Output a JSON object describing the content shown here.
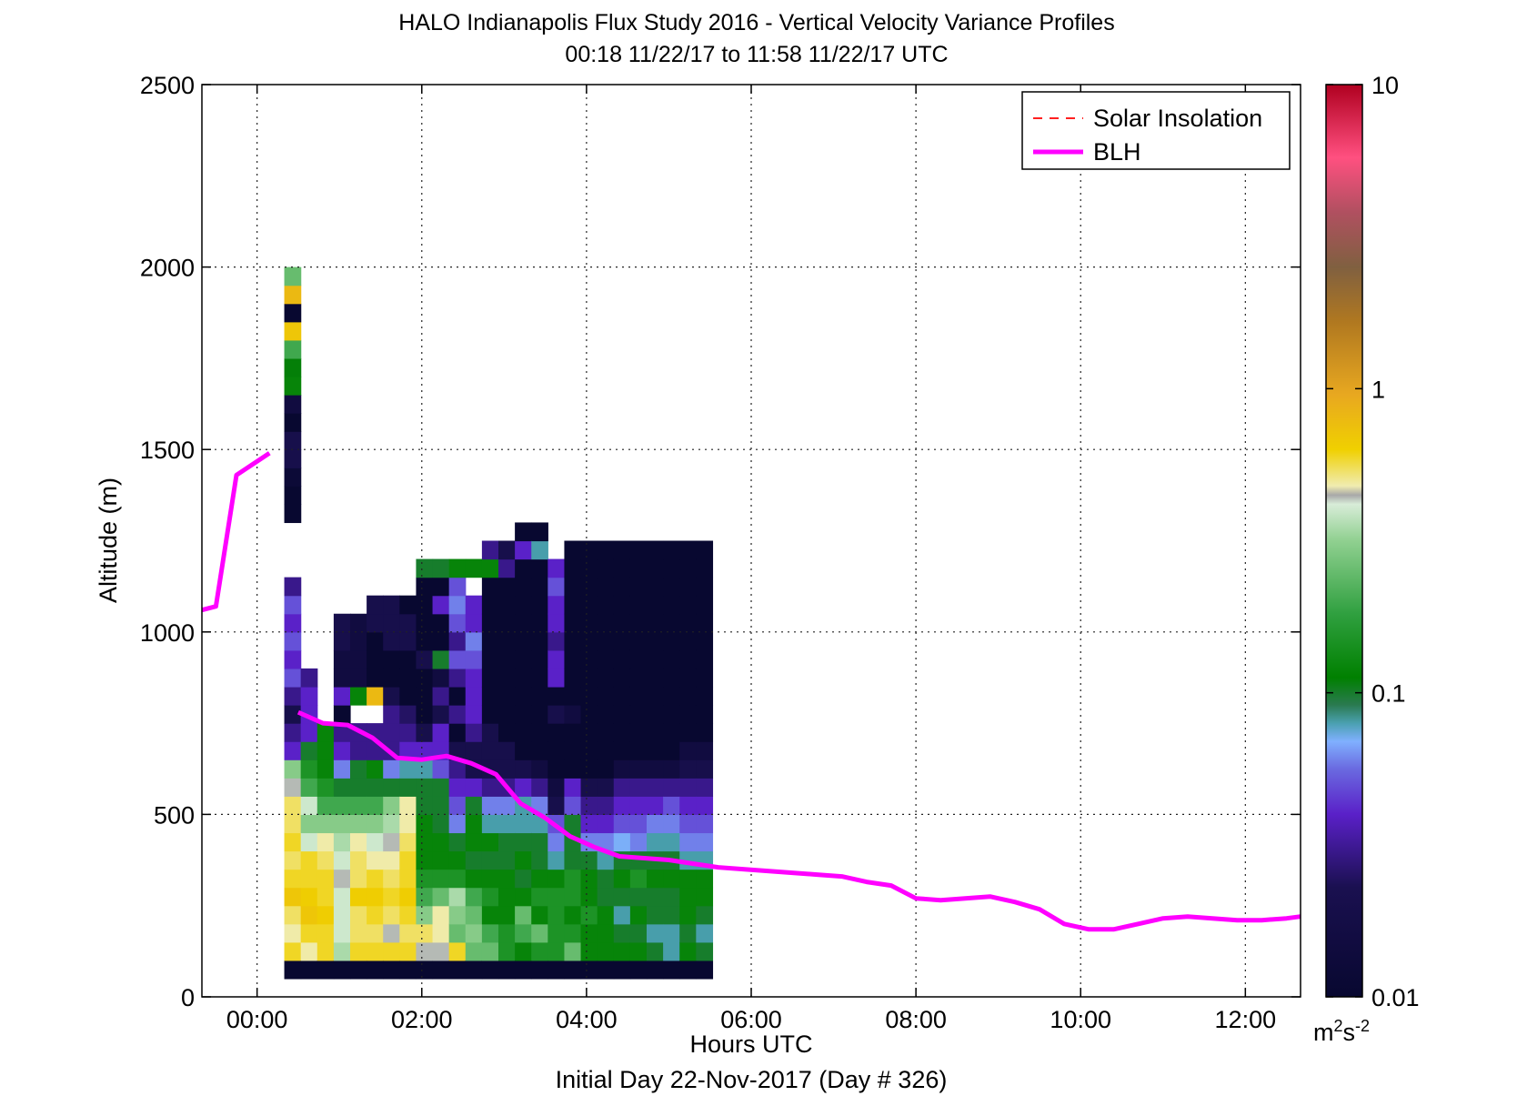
{
  "chart_data": {
    "type": "heatmap",
    "title": "HALO Indianapolis Flux Study 2016 - Vertical Velocity Variance Profiles",
    "subtitle": "00:18 11/22/17 to 11:58 11/22/17  UTC",
    "xlabel": "Hours UTC",
    "xlabel2": "Initial Day 22-Nov-2017 (Day # 326)",
    "ylabel": "Altitude (m)",
    "xlim": [
      -0.67,
      12.67
    ],
    "ylim": [
      0,
      2500
    ],
    "x_ticks": [
      {
        "value": 0,
        "label": "00:00"
      },
      {
        "value": 2,
        "label": "02:00"
      },
      {
        "value": 4,
        "label": "04:00"
      },
      {
        "value": 6,
        "label": "06:00"
      },
      {
        "value": 8,
        "label": "08:00"
      },
      {
        "value": 10,
        "label": "10:00"
      },
      {
        "value": 12,
        "label": "12:00"
      }
    ],
    "y_ticks": [
      {
        "value": 0,
        "label": "0"
      },
      {
        "value": 500,
        "label": "500"
      },
      {
        "value": 1000,
        "label": "1000"
      },
      {
        "value": 1500,
        "label": "1500"
      },
      {
        "value": 2000,
        "label": "2000"
      },
      {
        "value": 2500,
        "label": "2500"
      }
    ],
    "grid": true,
    "legend": {
      "placement": "top-right",
      "entries": [
        {
          "label": "Solar Insolation",
          "color": "#ff0000",
          "style": "dashed"
        },
        {
          "label": "BLH",
          "color": "#ff00ff",
          "style": "solid"
        }
      ]
    },
    "colorbar": {
      "scale": "log",
      "range": [
        0.01,
        10
      ],
      "ticks": [
        {
          "value": 0.01,
          "label": "0.01"
        },
        {
          "value": 0.1,
          "label": "0.1"
        },
        {
          "value": 1,
          "label": "1"
        },
        {
          "value": 10,
          "label": "10"
        }
      ],
      "unit_base": "m",
      "unit_sup1": "2",
      "unit_mid": "s",
      "unit_sup2": "-2"
    },
    "heatmap": {
      "x_start": 0.33,
      "x_step": 0.2,
      "y_start": 50,
      "y_step": 50,
      "columns": [
        {
          "v": [
            0.01,
            0.6,
            0.5,
            0.55,
            0.7,
            0.6,
            0.55,
            0.6,
            0.55,
            0.55,
            0.45,
            0.3,
            0.04,
            0.03,
            0.02,
            0.03,
            0.05,
            0.04,
            0.05,
            0.04,
            0.05,
            0.03,
            0,
            0,
            0,
            0.01,
            0.01,
            0.012,
            0.02,
            0.02,
            0.01,
            0.015,
            0.12,
            0.11,
            0.2,
            0.7,
            0.01,
            0.8,
            0.25
          ]
        },
        {
          "v": [
            0.01,
            0.5,
            0.6,
            0.7,
            0.65,
            0.6,
            0.6,
            0.4,
            0.3,
            0.4,
            0.2,
            0.15,
            0.1,
            0.04,
            0.04,
            0.04,
            0.03
          ]
        },
        {
          "v": [
            0.01,
            0.6,
            0.6,
            0.65,
            0.6,
            0.6,
            0.55,
            0.5,
            0.3,
            0.2,
            0.15,
            0.12,
            0.12,
            0.12,
            0,
            0,
            0
          ]
        },
        {
          "v": [
            0.01,
            0.35,
            0.4,
            0.4,
            0.4,
            0.45,
            0.4,
            0.35,
            0.3,
            0.2,
            0.1,
            0.06,
            0.04,
            0.03,
            0.01,
            0.04,
            0.015,
            0.015,
            0.02,
            0.02
          ]
        },
        {
          "v": [
            0.01,
            0.6,
            0.55,
            0.55,
            0.65,
            0.55,
            0.55,
            0.5,
            0.3,
            0.2,
            0.1,
            0.1,
            0.03,
            0.03,
            0,
            0.12,
            0.015,
            0.015,
            0.015,
            0.015
          ]
        },
        {
          "v": [
            0.01,
            0.6,
            0.55,
            0.6,
            0.65,
            0.6,
            0.5,
            0.4,
            0.3,
            0.2,
            0.1,
            0.12,
            0.03,
            0.03,
            0,
            0.8,
            0.01,
            0.01,
            0.01,
            0.02,
            0.02
          ]
        },
        {
          "v": [
            0.01,
            0.6,
            0.45,
            0.55,
            0.6,
            0.55,
            0.5,
            0.45,
            0.35,
            0.3,
            0.1,
            0.06,
            0.03,
            0.03,
            0.03,
            0.02,
            0.01,
            0.01,
            0.02,
            0.02,
            0.02
          ]
        },
        {
          "v": [
            0.01,
            0.6,
            0.55,
            0.6,
            0.65,
            0.6,
            0.6,
            0.55,
            0.5,
            0.5,
            0.1,
            0.08,
            0.04,
            0.03,
            0.025,
            0.01,
            0.01,
            0.01,
            0.02,
            0.02,
            0.01
          ]
        },
        {
          "v": [
            0.01,
            0.45,
            0.55,
            0.3,
            0.2,
            0.15,
            0.12,
            0.12,
            0.12,
            0.1,
            0.1,
            0.08,
            0.04,
            0.02,
            0.01,
            0.01,
            0.01,
            0.02,
            0.01,
            0.01,
            0.01,
            0.01,
            0.1
          ]
        },
        {
          "v": [
            0.01,
            0.45,
            0.5,
            0.5,
            0.25,
            0.15,
            0.12,
            0.12,
            0.1,
            0.1,
            0.1,
            0.05,
            0.04,
            0.04,
            0.02,
            0.03,
            0.015,
            0.1,
            0.01,
            0.01,
            0.04,
            0.01,
            0.1
          ]
        },
        {
          "v": [
            0.01,
            0.6,
            0.25,
            0.3,
            0.35,
            0.15,
            0.12,
            0.1,
            0.06,
            0.05,
            0.04,
            0.03,
            0.02,
            0.01,
            0.03,
            0.01,
            0.03,
            0.05,
            0.03,
            0.05,
            0.06,
            0.05,
            0.12
          ]
        },
        {
          "v": [
            0.01,
            0.25,
            0.3,
            0.25,
            0.2,
            0.12,
            0.1,
            0.12,
            0.12,
            0.1,
            0.04,
            0.02,
            0.02,
            0.03,
            0.04,
            0.04,
            0.04,
            0.05,
            0.06,
            0.04,
            0.04,
            0,
            0.12
          ]
        },
        {
          "v": [
            0.01,
            0.25,
            0.2,
            0.12,
            0.15,
            0.12,
            0.1,
            0.12,
            0.08,
            0.06,
            0.03,
            0.02,
            0.02,
            0.02,
            0.01,
            0.01,
            0.01,
            0.01,
            0.01,
            0.01,
            0.01,
            0.01,
            0.12,
            0.03
          ]
        },
        {
          "v": [
            0.01,
            0.15,
            0.15,
            0.12,
            0.12,
            0.12,
            0.1,
            0.1,
            0.08,
            0.06,
            0.03,
            0.02,
            0.02,
            0.01,
            0.01,
            0.01,
            0.01,
            0.01,
            0.01,
            0.01,
            0.01,
            0.01,
            0.03,
            0.02
          ]
        },
        {
          "v": [
            0.01,
            0.12,
            0.2,
            0.25,
            0.12,
            0.1,
            0.12,
            0.1,
            0.08,
            0.08,
            0.04,
            0.02,
            0.01,
            0.01,
            0.01,
            0.01,
            0.01,
            0.01,
            0.01,
            0.01,
            0.01,
            0.01,
            0.01,
            0.04,
            0.01
          ]
        },
        {
          "v": [
            0.01,
            0.15,
            0.25,
            0.12,
            0.15,
            0.12,
            0.1,
            0.1,
            0.08,
            0.06,
            0.03,
            0.015,
            0.01,
            0.01,
            0.01,
            0.01,
            0.01,
            0.01,
            0.01,
            0.01,
            0.01,
            0.01,
            0.01,
            0.08,
            0.01
          ]
        },
        {
          "v": [
            0.01,
            0.15,
            0.15,
            0.15,
            0.15,
            0.12,
            0.08,
            0.06,
            0.05,
            0.02,
            0.015,
            0.01,
            0.01,
            0.01,
            0.02,
            0.01,
            0.04,
            0.04,
            0.03,
            0.04,
            0.04,
            0.05,
            0.04
          ]
        },
        {
          "v": [
            0.01,
            0.25,
            0.15,
            0.12,
            0.15,
            0.15,
            0.1,
            0.1,
            0.1,
            0.05,
            0.04,
            0.01,
            0.01,
            0.01,
            0.015,
            0.01,
            0.01,
            0.01,
            0.01,
            0.01,
            0.01,
            0.01,
            0.01,
            0.01
          ]
        },
        {
          "v": [
            0.01,
            0.12,
            0.12,
            0.15,
            0.12,
            0.12,
            0.1,
            0.06,
            0.04,
            0.03,
            0.02,
            0.01,
            0.01,
            0.01,
            0.01,
            0.01,
            0.01,
            0.01,
            0.01,
            0.01,
            0.01,
            0.01,
            0.01,
            0.01
          ]
        },
        {
          "v": [
            0.01,
            0.12,
            0.12,
            0.12,
            0.1,
            0.1,
            0.08,
            0.06,
            0.04,
            0.03,
            0.02,
            0.01,
            0.01,
            0.01,
            0.01,
            0.01,
            0.01,
            0.01,
            0.01,
            0.01,
            0.01,
            0.01,
            0.01,
            0.01
          ]
        },
        {
          "v": [
            0.01,
            0.12,
            0.1,
            0.08,
            0.1,
            0.12,
            0.1,
            0.07,
            0.05,
            0.04,
            0.03,
            0.015,
            0.01,
            0.01,
            0.01,
            0.01,
            0.01,
            0.01,
            0.01,
            0.01,
            0.01,
            0.01,
            0.01,
            0.01
          ]
        },
        {
          "v": [
            0.01,
            0.12,
            0.1,
            0.12,
            0.1,
            0.15,
            0.1,
            0.06,
            0.05,
            0.04,
            0.03,
            0.015,
            0.01,
            0.01,
            0.01,
            0.01,
            0.01,
            0.01,
            0.01,
            0.01,
            0.01,
            0.01,
            0.01,
            0.01
          ]
        },
        {
          "v": [
            0.01,
            0.1,
            0.08,
            0.1,
            0.1,
            0.12,
            0.1,
            0.08,
            0.06,
            0.04,
            0.03,
            0.015,
            0.01,
            0.01,
            0.01,
            0.01,
            0.01,
            0.01,
            0.01,
            0.01,
            0.01,
            0.01,
            0.01,
            0.01
          ]
        },
        {
          "v": [
            0.01,
            0.08,
            0.08,
            0.1,
            0.1,
            0.12,
            0.1,
            0.08,
            0.06,
            0.05,
            0.03,
            0.015,
            0.01,
            0.01,
            0.01,
            0.01,
            0.01,
            0.01,
            0.01,
            0.01,
            0.01,
            0.01,
            0.01,
            0.01
          ]
        },
        {
          "v": [
            0.01,
            0.12,
            0.1,
            0.12,
            0.12,
            0.12,
            0.08,
            0.06,
            0.05,
            0.04,
            0.03,
            0.02,
            0.015,
            0.01,
            0.01,
            0.01,
            0.01,
            0.01,
            0.01,
            0.01,
            0.01,
            0.01,
            0.01,
            0.01
          ]
        },
        {
          "v": [
            0.01,
            0.1,
            0.08,
            0.1,
            0.12,
            0.12,
            0.08,
            0.06,
            0.05,
            0.04,
            0.03,
            0.02,
            0.015,
            0.01,
            0.01,
            0.01,
            0.01,
            0.01,
            0.01,
            0.01,
            0.01,
            0.01,
            0.01,
            0.01
          ]
        }
      ]
    },
    "blh": {
      "x": [
        -0.67,
        -0.5,
        -0.25,
        0.15,
        0.5,
        0.8,
        1.1,
        1.4,
        1.7,
        2.0,
        2.3,
        2.6,
        2.9,
        3.2,
        3.5,
        3.8,
        4.1,
        4.4,
        4.7,
        5.0,
        5.3,
        5.6,
        5.9,
        6.2,
        6.5,
        6.8,
        7.1,
        7.4,
        7.7,
        8.0,
        8.3,
        8.6,
        8.9,
        9.2,
        9.5,
        9.8,
        10.1,
        10.4,
        10.7,
        11.0,
        11.3,
        11.6,
        11.9,
        12.2,
        12.5,
        12.67
      ],
      "y": [
        1060,
        1070,
        1430,
        1490,
        780,
        750,
        745,
        710,
        655,
        650,
        660,
        640,
        610,
        530,
        490,
        440,
        410,
        385,
        380,
        375,
        365,
        355,
        350,
        345,
        340,
        335,
        330,
        315,
        305,
        270,
        265,
        270,
        275,
        260,
        240,
        200,
        185,
        185,
        200,
        215,
        220,
        215,
        210,
        210,
        215,
        220
      ]
    }
  },
  "colors": {
    "blh_line": "#ff00ff",
    "solar_line": "#ff0000"
  }
}
